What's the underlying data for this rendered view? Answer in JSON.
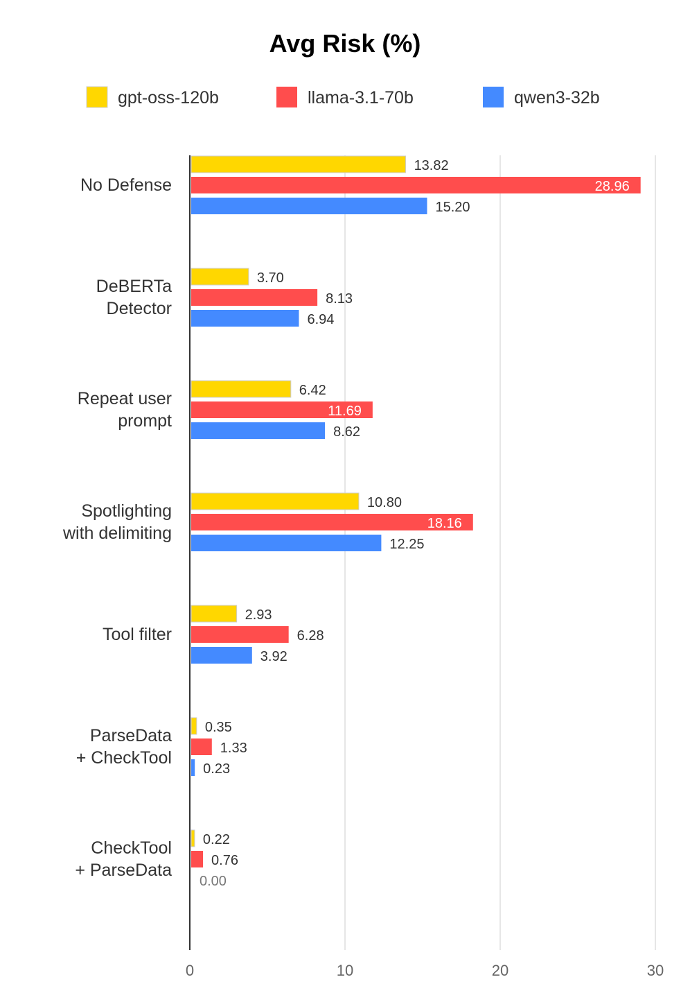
{
  "chart_data": {
    "type": "bar",
    "orientation": "horizontal",
    "title": "Avg Risk (%)",
    "xlabel": "",
    "ylabel": "",
    "xlim": [
      0,
      30
    ],
    "xticks": [
      0,
      10,
      20,
      30
    ],
    "grid": true,
    "legend_position": "top",
    "categories": [
      [
        "No Defense"
      ],
      [
        "DeBERTa",
        "Detector"
      ],
      [
        "Repeat user",
        "prompt"
      ],
      [
        "Spotlighting",
        "with delimiting"
      ],
      [
        "Tool filter"
      ],
      [
        "ParseData",
        "+ CheckTool"
      ],
      [
        "CheckTool",
        "+ ParseData"
      ]
    ],
    "series": [
      {
        "name": "gpt-oss-120b",
        "color": "#FFD700",
        "values": [
          13.82,
          3.7,
          6.42,
          10.8,
          2.93,
          0.35,
          0.22
        ],
        "labels": [
          "13.82",
          "3.70",
          "6.42",
          "10.80",
          "2.93",
          "0.35",
          "0.22"
        ]
      },
      {
        "name": "llama-3.1-70b",
        "color": "#FF4D4D",
        "values": [
          28.96,
          8.13,
          11.69,
          18.16,
          6.28,
          1.33,
          0.76
        ],
        "labels": [
          "28.96",
          "8.13",
          "11.69",
          "18.16",
          "6.28",
          "1.33",
          "0.76"
        ]
      },
      {
        "name": "qwen3-32b",
        "color": "#448AFF",
        "values": [
          15.2,
          6.94,
          8.62,
          12.25,
          3.92,
          0.23,
          0.0
        ],
        "labels": [
          "15.20",
          "6.94",
          "8.62",
          "12.25",
          "3.92",
          "0.23",
          "0.00"
        ]
      }
    ]
  }
}
